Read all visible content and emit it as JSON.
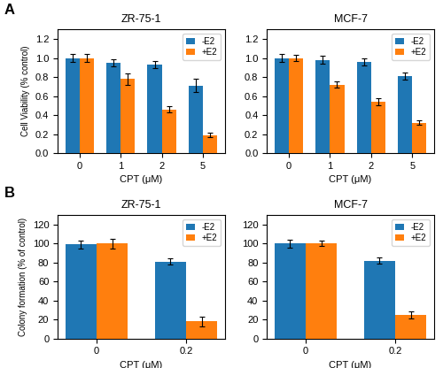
{
  "chart_data": [
    {
      "type": "bar",
      "title": "ZR-75-1",
      "xlabel": "CPT (μM)",
      "ylabel": "Cell Viability (% control)",
      "annotations": [
        "A"
      ],
      "categories": [
        "0",
        "1",
        "2",
        "5"
      ],
      "series": [
        {
          "name": "-E2",
          "values": [
            1.0,
            0.95,
            0.93,
            0.71
          ],
          "errors": [
            0.04,
            0.04,
            0.04,
            0.07
          ]
        },
        {
          "name": "+E2",
          "values": [
            1.0,
            0.78,
            0.46,
            0.19
          ],
          "errors": [
            0.04,
            0.06,
            0.03,
            0.02
          ]
        }
      ],
      "ylim": [
        0,
        1.3
      ],
      "yticks": [
        {
          "value": 0,
          "label": "0.0"
        },
        0.2,
        0.4,
        0.6,
        0.8,
        {
          "value": 1.0,
          "label": "1.0"
        },
        1.2
      ],
      "grid": false,
      "legend": "upper right"
    },
    {
      "type": "bar",
      "title": "MCF-7",
      "xlabel": "CPT (μM)",
      "categories": [
        "0",
        "1",
        "2",
        "5"
      ],
      "series": [
        {
          "name": "-E2",
          "values": [
            1.0,
            0.98,
            0.96,
            0.81
          ],
          "errors": [
            0.04,
            0.04,
            0.04,
            0.04
          ]
        },
        {
          "name": "+E2",
          "values": [
            1.0,
            0.72,
            0.54,
            0.32
          ],
          "errors": [
            0.03,
            0.03,
            0.04,
            0.02
          ]
        }
      ],
      "ylim": [
        0,
        1.3
      ],
      "yticks": [
        {
          "value": 0,
          "label": "0.0"
        },
        0.2,
        0.4,
        0.6,
        0.8,
        {
          "value": 1.0,
          "label": "1.0"
        },
        1.2
      ],
      "grid": false,
      "legend": "upper right"
    },
    {
      "type": "bar",
      "title": "ZR-75-1",
      "xlabel": "CPT (μM)",
      "ylabel": "Colony formation (% of control)",
      "annotations": [
        "B"
      ],
      "categories": [
        "0",
        "0.2"
      ],
      "series": [
        {
          "name": "-E2",
          "values": [
            99,
            81
          ],
          "errors": [
            4,
            3
          ]
        },
        {
          "name": "+E2",
          "values": [
            100,
            18
          ],
          "errors": [
            5,
            5
          ]
        }
      ],
      "ylim": [
        0,
        130
      ],
      "yticks": [
        0,
        20,
        40,
        60,
        80,
        100,
        120
      ],
      "grid": false,
      "legend": "upper right"
    },
    {
      "type": "bar",
      "title": "MCF-7",
      "xlabel": "CPT (μM)",
      "categories": [
        "0",
        "0.2"
      ],
      "series": [
        {
          "name": "-E2",
          "values": [
            100,
            82
          ],
          "errors": [
            4,
            3
          ]
        },
        {
          "name": "+E2",
          "values": [
            100,
            25
          ],
          "errors": [
            3,
            4
          ]
        }
      ],
      "ylim": [
        0,
        130
      ],
      "yticks": [
        0,
        20,
        40,
        60,
        80,
        100,
        120
      ],
      "grid": false,
      "legend": "upper right"
    }
  ]
}
